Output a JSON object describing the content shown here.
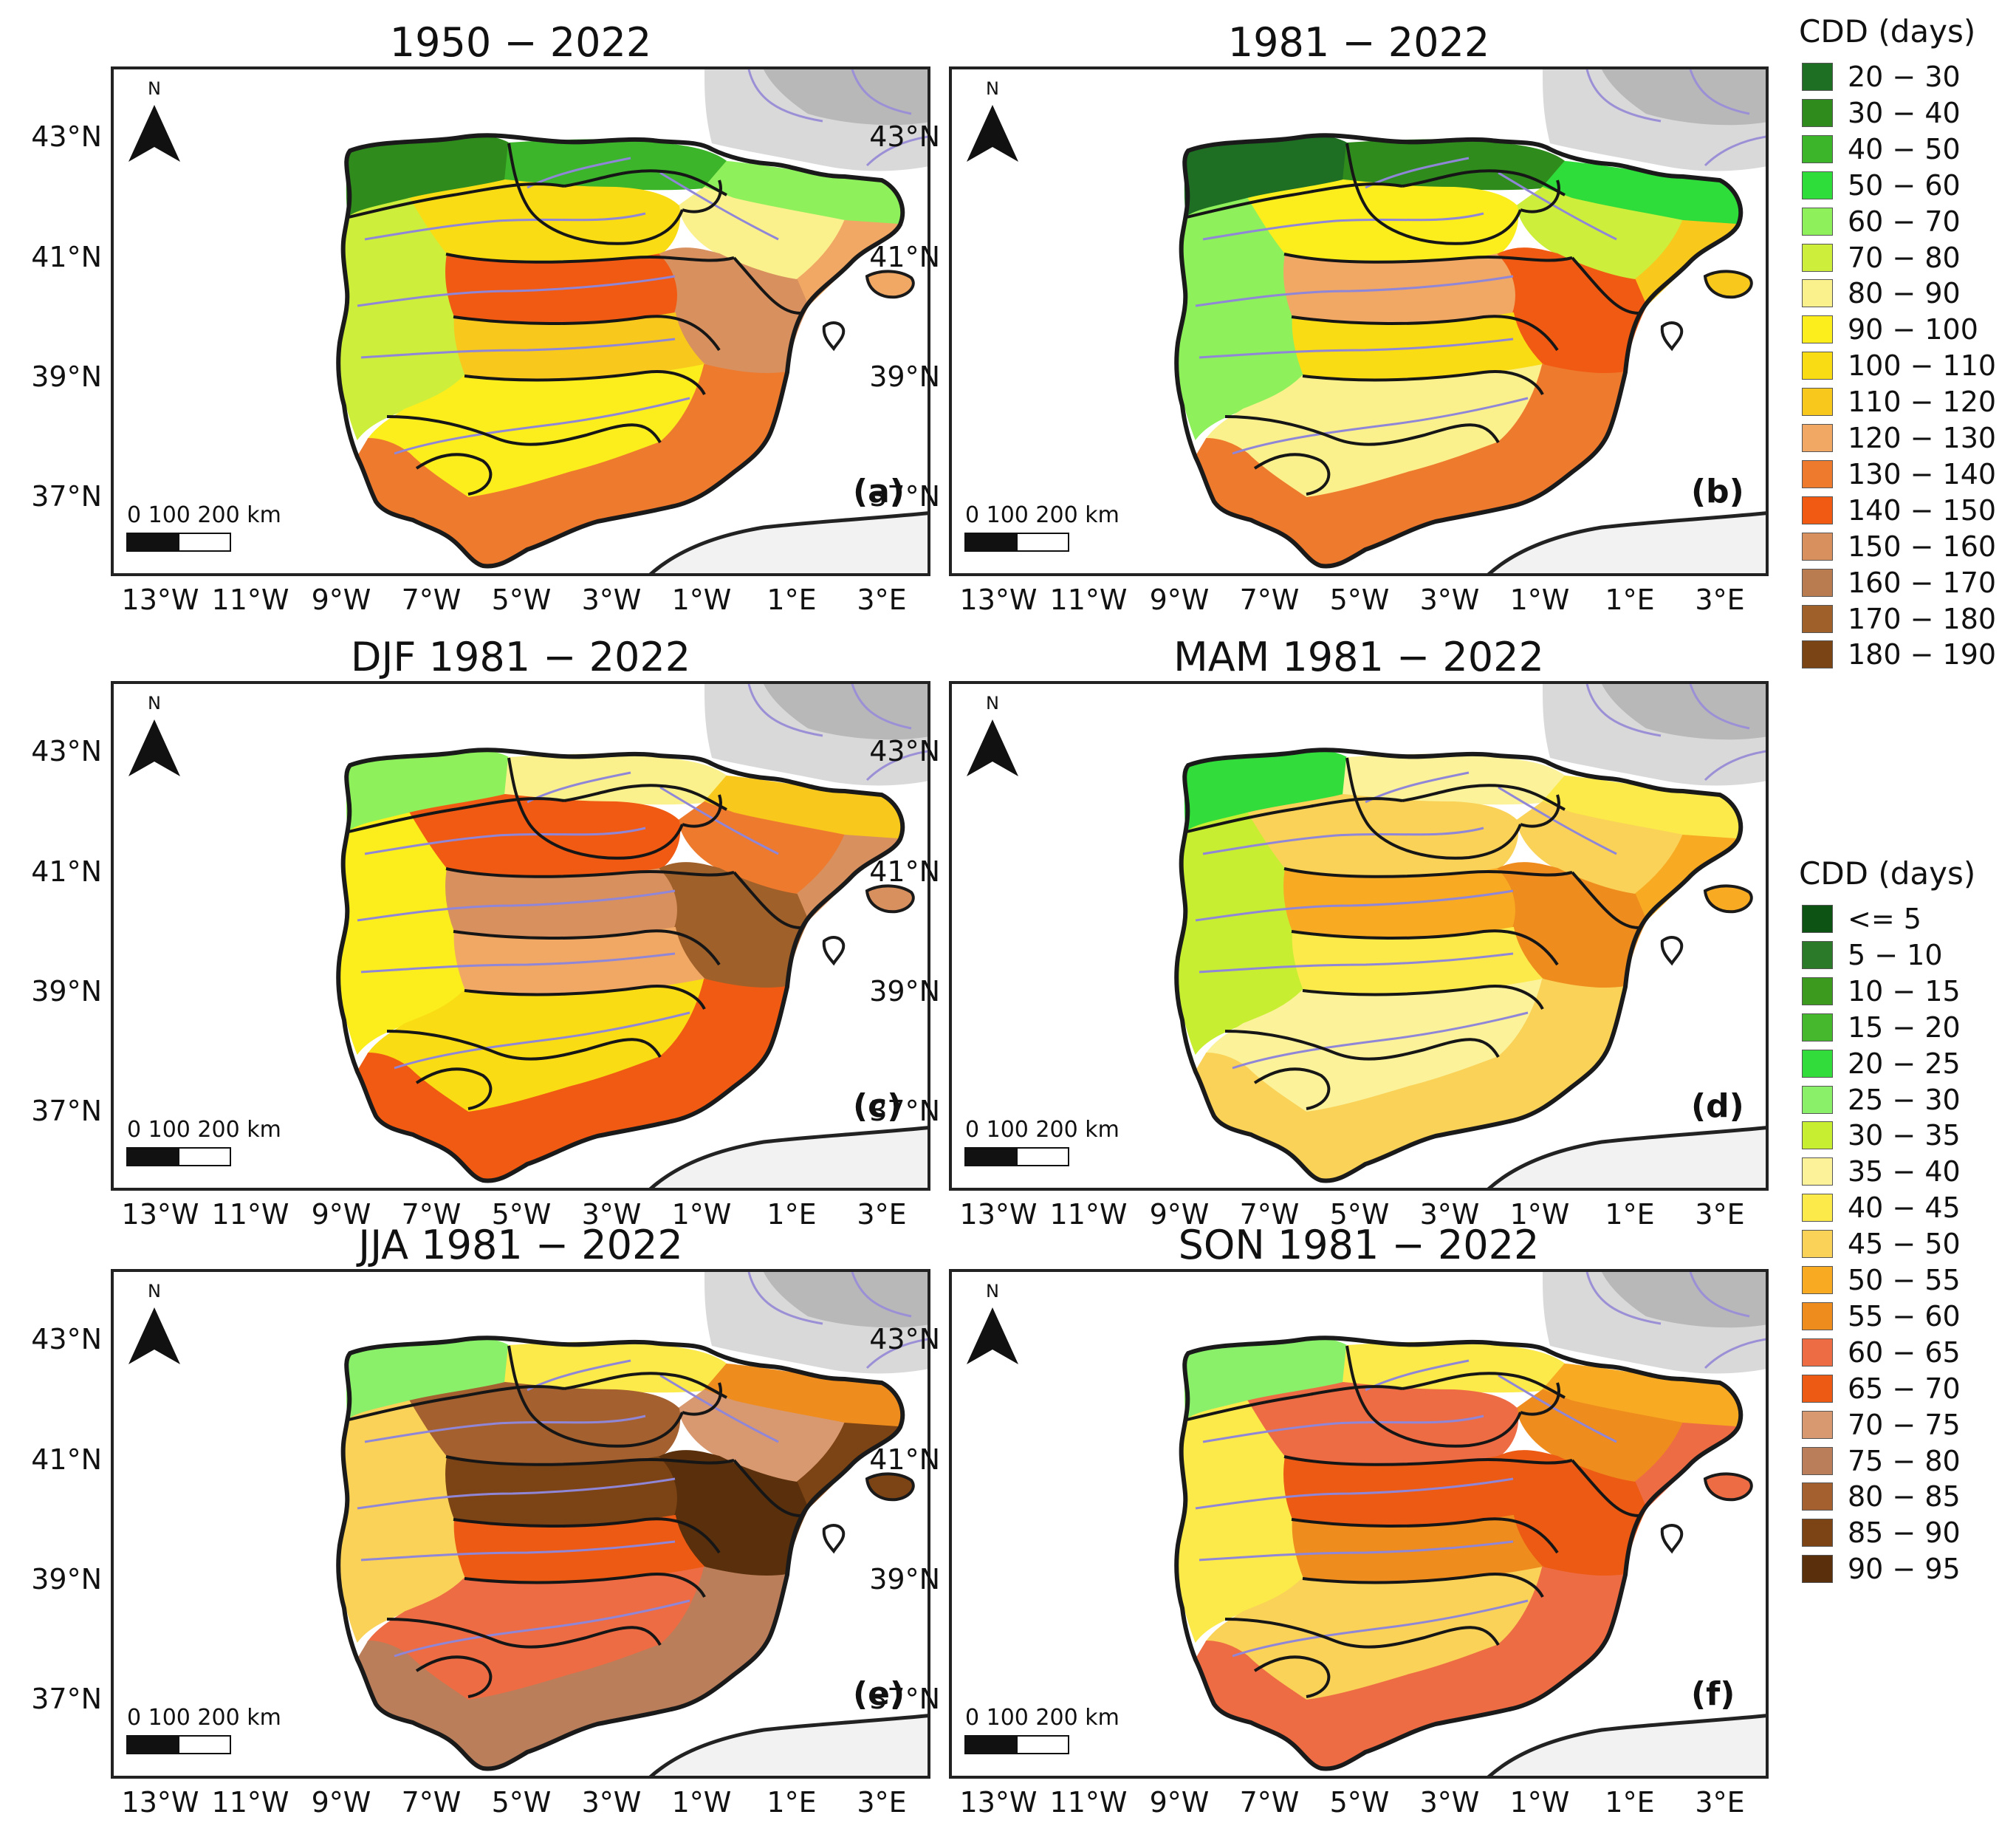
{
  "figure": {
    "panels": [
      {
        "title": "1950 − 2022",
        "letter": "(a)",
        "palette": "annual",
        "levels": [
          1,
          2,
          4,
          6,
          8,
          10,
          12,
          13,
          9,
          5,
          7,
          11
        ]
      },
      {
        "title": "1981 − 2022",
        "letter": "(b)",
        "palette": "annual",
        "levels": [
          0,
          1,
          3,
          5,
          7,
          9,
          10,
          12,
          8,
          4,
          6,
          11
        ]
      },
      {
        "title": "DJF 1981 − 2022",
        "letter": "(c)",
        "palette": "annual",
        "levels": [
          4,
          6,
          9,
          11,
          12,
          13,
          13,
          15,
          10,
          7,
          8,
          12
        ]
      },
      {
        "title": "MAM 1981 − 2022",
        "letter": "(d)",
        "palette": "seasonal",
        "levels": [
          4,
          7,
          8,
          9,
          9,
          10,
          10,
          11,
          8,
          6,
          7,
          9
        ]
      },
      {
        "title": "JJA 1981 − 2022",
        "letter": "(e)",
        "palette": "seasonal",
        "levels": [
          5,
          8,
          11,
          14,
          16,
          17,
          17,
          18,
          13,
          9,
          12,
          15
        ]
      },
      {
        "title": "SON 1981 − 2022",
        "letter": "(f)",
        "palette": "seasonal",
        "levels": [
          5,
          8,
          10,
          11,
          12,
          12,
          13,
          13,
          11,
          8,
          9,
          12
        ]
      }
    ],
    "lat_ticks": [
      "43°N",
      "41°N",
      "39°N",
      "37°N"
    ],
    "lon_ticks": [
      "13°W",
      "11°W",
      "9°W",
      "7°W",
      "5°W",
      "3°W",
      "1°W",
      "1°E",
      "3°E"
    ],
    "north_label": "N",
    "scale_label": "0   100 200 km"
  },
  "legends": {
    "annual": {
      "title": "CDD (days)",
      "classes": [
        "20 − 30",
        "30 − 40",
        "40 − 50",
        "50 − 60",
        "60 − 70",
        "70 − 80",
        "80 − 90",
        "90 − 100",
        "100 − 110",
        "110 − 120",
        "120 − 130",
        "130 − 140",
        "140 − 150",
        "150 − 160",
        "160 − 170",
        "170 − 180",
        "180 − 190"
      ],
      "colors": [
        "#1e6e23",
        "#2f8c1c",
        "#3cb52a",
        "#2edc3a",
        "#8ef05a",
        "#cdee3a",
        "#fbf18c",
        "#fbee1c",
        "#fadc14",
        "#f8c81c",
        "#f0a864",
        "#ee7a2e",
        "#f05a12",
        "#d8905e",
        "#b87c50",
        "#a0602a",
        "#7a4414"
      ]
    },
    "seasonal": {
      "title": "CDD (days)",
      "classes": [
        "<= 5",
        "5 − 10",
        "10 − 15",
        "15 − 20",
        "20 − 25",
        "25 − 30",
        "30 − 35",
        "35 − 40",
        "40 − 45",
        "45 − 50",
        "50 − 55",
        "55 − 60",
        "60 − 65",
        "65 − 70",
        "70 − 75",
        "75 − 80",
        "80 − 85",
        "85 − 90",
        "90 − 95"
      ],
      "colors": [
        "#0d5414",
        "#2a7a2a",
        "#3c9a1e",
        "#46b82e",
        "#32dc3a",
        "#8af06a",
        "#c8ee32",
        "#fbf29a",
        "#fbea4a",
        "#fad258",
        "#f8aa22",
        "#ee8c1e",
        "#ee6c44",
        "#ec5a14",
        "#d89870",
        "#ba7e5a",
        "#a4602e",
        "#7c4314",
        "#5a300c"
      ]
    }
  }
}
